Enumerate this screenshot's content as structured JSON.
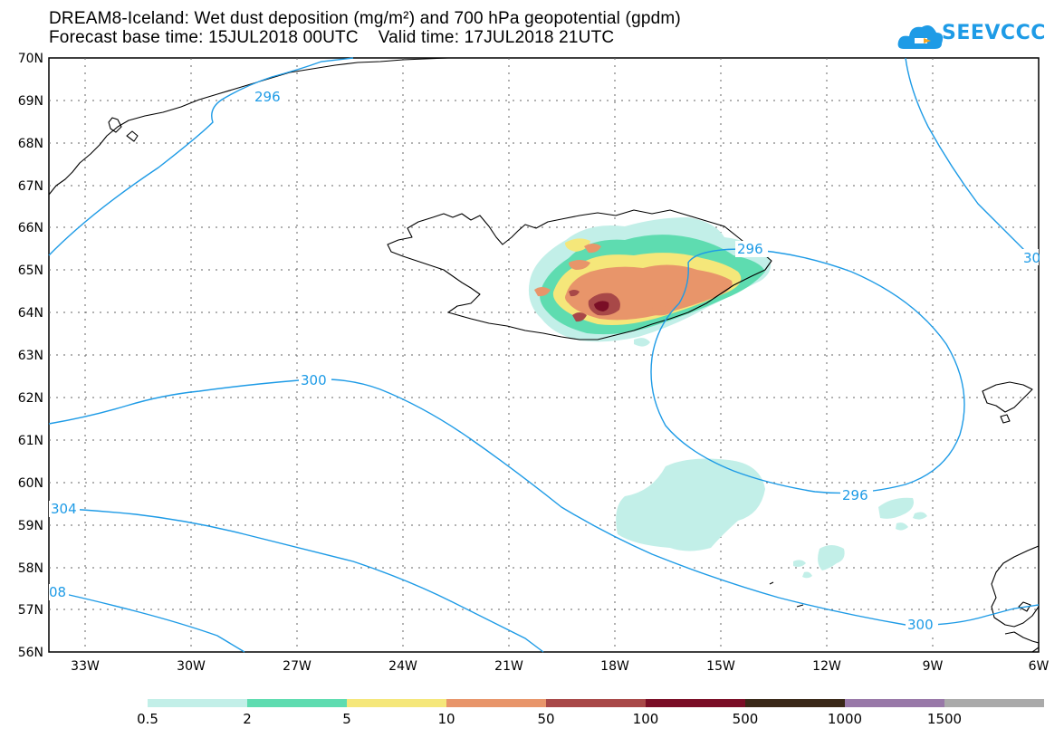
{
  "title": {
    "line1": "DREAM8-Iceland: Wet dust deposition (mg/m²) and 700 hPa geopotential (gpdm)",
    "line2": "Forecast base time: 15JUL2018 00UTC    Valid time: 17JUL2018 21UTC"
  },
  "logo": {
    "text": "SEEVCCC",
    "icon": "cloud-icon"
  },
  "axes": {
    "lat_labels": [
      "70N",
      "69N",
      "68N",
      "67N",
      "66N",
      "65N",
      "64N",
      "63N",
      "62N",
      "61N",
      "60N",
      "59N",
      "58N",
      "57N",
      "56N"
    ],
    "lon_labels": [
      "33W",
      "30W",
      "27W",
      "24W",
      "21W",
      "18W",
      "15W",
      "12W",
      "9W",
      "6W"
    ]
  },
  "contours": [
    {
      "value": "296",
      "label_pos": "upper-left"
    },
    {
      "value": "296",
      "label_pos": "north of low"
    },
    {
      "value": "296",
      "label_pos": "south of low"
    },
    {
      "value": "30",
      "label_pos": "right edge"
    },
    {
      "value": "300",
      "label_pos": "center-left"
    },
    {
      "value": "300",
      "label_pos": "lower-right"
    },
    {
      "value": "304",
      "label_pos": "left edge"
    },
    {
      "value": "08",
      "label_pos": "lower-left edge"
    }
  ],
  "legend": {
    "labels": [
      "0.5",
      "2",
      "5",
      "10",
      "50",
      "100",
      "500",
      "1000",
      "1500"
    ],
    "colors": [
      "#c2efe8",
      "#5edcb0",
      "#f5e77a",
      "#e8956a",
      "#a84848",
      "#7a0e26",
      "#3a2818",
      "#9878a8",
      "#aaaaaa"
    ]
  },
  "colors": {
    "contour": "#1e9be6",
    "coast": "#000000",
    "grid": "#666666"
  }
}
